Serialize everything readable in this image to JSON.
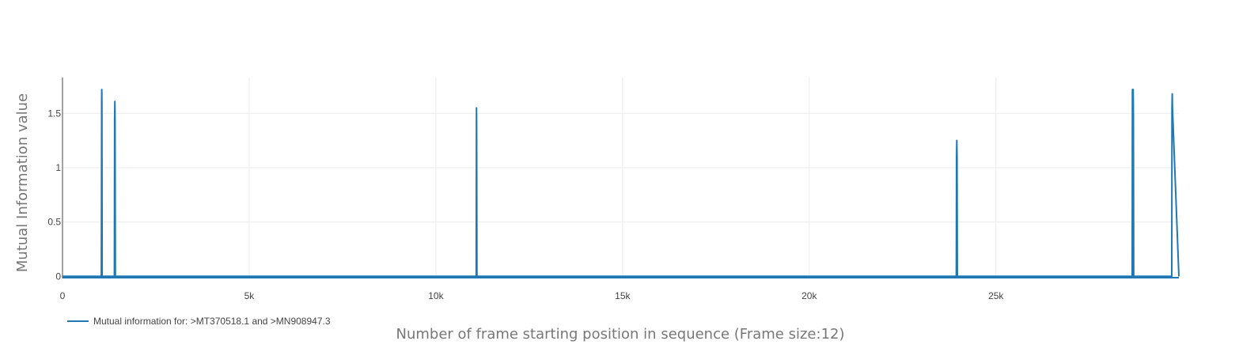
{
  "chart_data": {
    "type": "line",
    "title": "",
    "xlabel": "Number of frame starting position in sequence (Frame size:12)",
    "ylabel": "Mutual Information value",
    "xlim": [
      0,
      29900
    ],
    "ylim": [
      -0.02,
      1.83
    ],
    "x_ticks": [
      0,
      5000,
      10000,
      15000,
      20000,
      25000
    ],
    "x_tick_labels": [
      "0",
      "5k",
      "10k",
      "15k",
      "20k",
      "25k"
    ],
    "y_ticks": [
      0,
      0.5,
      1,
      1.5
    ],
    "y_tick_labels": [
      "0",
      "0.5",
      "1",
      "1.5"
    ],
    "grid": true,
    "legend_position": "bottom-left",
    "series": [
      {
        "name": "Mutual information for: >MT370518.1 and >MN908947.3",
        "color": "#1f77b4",
        "x": [
          0,
          1040,
          1048,
          1052,
          1056,
          1062,
          1070,
          1390,
          1396,
          1402,
          1408,
          1416,
          11080,
          11086,
          11092,
          11100,
          23940,
          23946,
          23952,
          23958,
          23966,
          28650,
          28656,
          28662,
          28668,
          28676,
          28682,
          28690,
          29710,
          29716,
          29722,
          29728,
          29900
        ],
        "values": [
          0,
          0,
          1.6,
          1.72,
          1.6,
          0,
          0,
          0,
          1.45,
          1.61,
          1.45,
          0,
          0,
          1.55,
          1.4,
          0,
          0,
          1.1,
          1.25,
          1.1,
          0,
          0,
          1.72,
          1.72,
          1.55,
          1.72,
          1.5,
          0,
          0,
          1.55,
          1.68,
          1.55,
          0
        ]
      }
    ]
  }
}
